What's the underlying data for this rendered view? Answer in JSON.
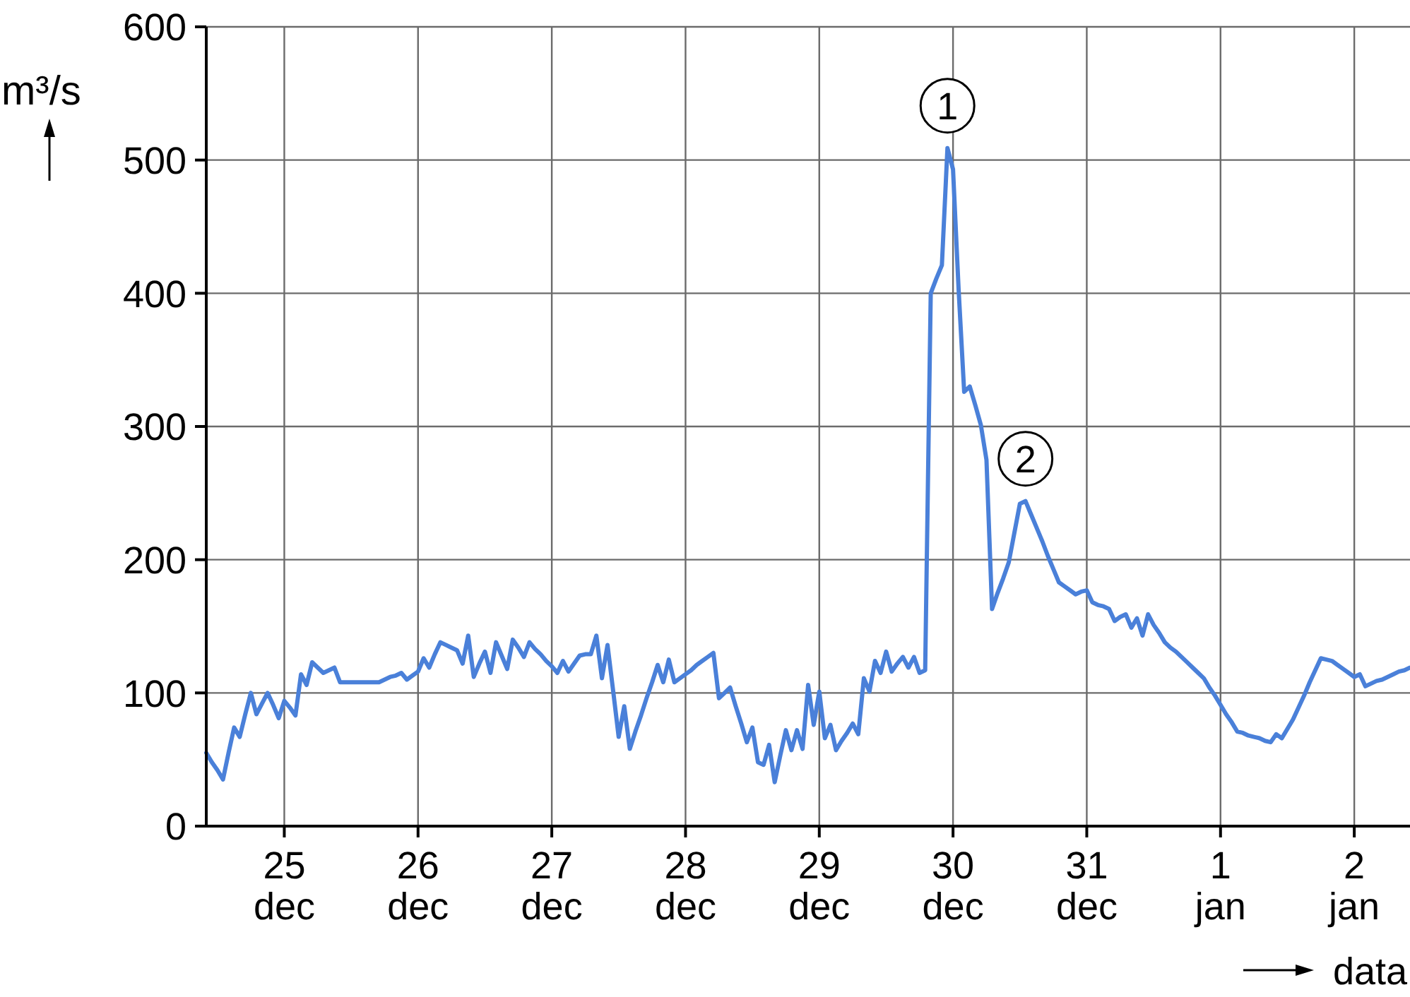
{
  "chart_data": {
    "type": "line",
    "ylabel": "m³/s",
    "xlabel": "data",
    "annotations": [
      {
        "text": "1",
        "y": 509
      },
      {
        "text": "2",
        "y": 244
      }
    ],
    "categories": [
      null,
      null,
      null,
      null,
      null,
      null,
      null,
      null,
      null,
      null,
      null,
      null,
      null,
      null,
      "25\ndec",
      null,
      null,
      null,
      null,
      null,
      null,
      null,
      null,
      null,
      null,
      null,
      null,
      null,
      null,
      null,
      null,
      null,
      null,
      null,
      null,
      null,
      null,
      null,
      "26\ndec",
      null,
      null,
      null,
      null,
      null,
      null,
      null,
      null,
      null,
      null,
      null,
      null,
      null,
      null,
      null,
      null,
      null,
      null,
      null,
      null,
      null,
      null,
      null,
      "27\ndec",
      null,
      null,
      null,
      null,
      null,
      null,
      null,
      null,
      null,
      null,
      null,
      null,
      null,
      null,
      null,
      null,
      null,
      null,
      null,
      null,
      null,
      null,
      null,
      "28\ndec",
      null,
      null,
      null,
      null,
      null,
      null,
      null,
      null,
      null,
      null,
      null,
      null,
      null,
      null,
      null,
      null,
      null,
      null,
      null,
      null,
      null,
      null,
      null,
      "29\ndec",
      null,
      null,
      null,
      null,
      null,
      null,
      null,
      null,
      null,
      null,
      null,
      null,
      null,
      null,
      null,
      null,
      null,
      null,
      null,
      null,
      null,
      null,
      null,
      "30\ndec",
      null,
      null,
      null,
      null,
      null,
      null,
      null,
      null,
      null,
      null,
      null,
      null,
      null,
      null,
      null,
      null,
      null,
      null,
      null,
      null,
      null,
      null,
      null,
      "31\ndec",
      null,
      null,
      null,
      null,
      null,
      null,
      null,
      null,
      null,
      null,
      null,
      null,
      null,
      null,
      null,
      null,
      null,
      null,
      null,
      null,
      null,
      null,
      null,
      "1\njan",
      null,
      null,
      null,
      null,
      null,
      null,
      null,
      null,
      null,
      null,
      null,
      null,
      null,
      null,
      null,
      null,
      null,
      null,
      null,
      null,
      null,
      null,
      null,
      "2\njan",
      null,
      null,
      null,
      null,
      null,
      null,
      null,
      null,
      null,
      null
    ],
    "series": [
      {
        "color": "#4a80d9",
        "values": [
          55,
          48,
          42,
          35,
          55,
          74,
          67,
          84,
          100,
          84,
          92,
          100,
          91,
          81,
          94,
          89,
          83,
          114,
          106,
          123,
          119,
          115,
          117,
          119,
          108,
          108,
          108,
          108,
          108,
          108,
          108,
          108,
          110,
          112,
          113,
          115,
          110,
          113,
          116,
          126,
          119,
          129,
          138,
          136,
          134,
          132,
          122,
          143,
          112,
          122,
          131,
          115,
          138,
          128,
          118,
          140,
          134,
          127,
          138,
          133,
          129,
          124,
          120,
          115,
          124,
          116,
          122,
          128,
          129,
          129,
          143,
          111,
          136,
          102,
          67,
          90,
          58,
          71,
          83,
          96,
          108,
          121,
          108,
          125,
          108,
          111,
          114,
          117,
          121,
          124,
          127,
          130,
          96,
          100,
          104,
          90,
          77,
          63,
          74,
          48,
          46,
          61,
          33,
          53,
          72,
          57,
          72,
          58,
          106,
          76,
          101,
          66,
          76,
          57,
          64,
          70,
          77,
          69,
          111,
          101,
          124,
          115,
          131,
          116,
          122,
          127,
          119,
          127,
          115,
          117,
          400,
          411,
          421,
          509,
          493,
          403,
          326,
          330,
          316,
          301,
          275,
          163,
          175,
          186,
          198,
          220,
          242,
          244,
          234,
          224,
          214,
          203,
          193,
          183,
          180,
          177,
          174,
          176,
          177,
          168,
          166,
          165,
          163,
          154,
          157,
          159,
          149,
          156,
          143,
          159,
          151,
          145,
          138,
          134,
          131,
          127,
          123,
          119,
          115,
          111,
          104,
          98,
          91,
          84,
          78,
          71,
          70,
          68,
          67,
          66,
          64,
          63,
          69,
          66,
          73,
          80,
          89,
          98,
          108,
          117,
          126,
          125,
          124,
          121,
          118,
          115,
          112,
          114,
          105,
          107,
          109,
          110,
          112,
          114,
          116,
          117,
          119
        ]
      }
    ],
    "ylim": [
      0,
      600
    ],
    "yticks": [
      0,
      100,
      200,
      300,
      400,
      500,
      600
    ],
    "grid": true
  }
}
